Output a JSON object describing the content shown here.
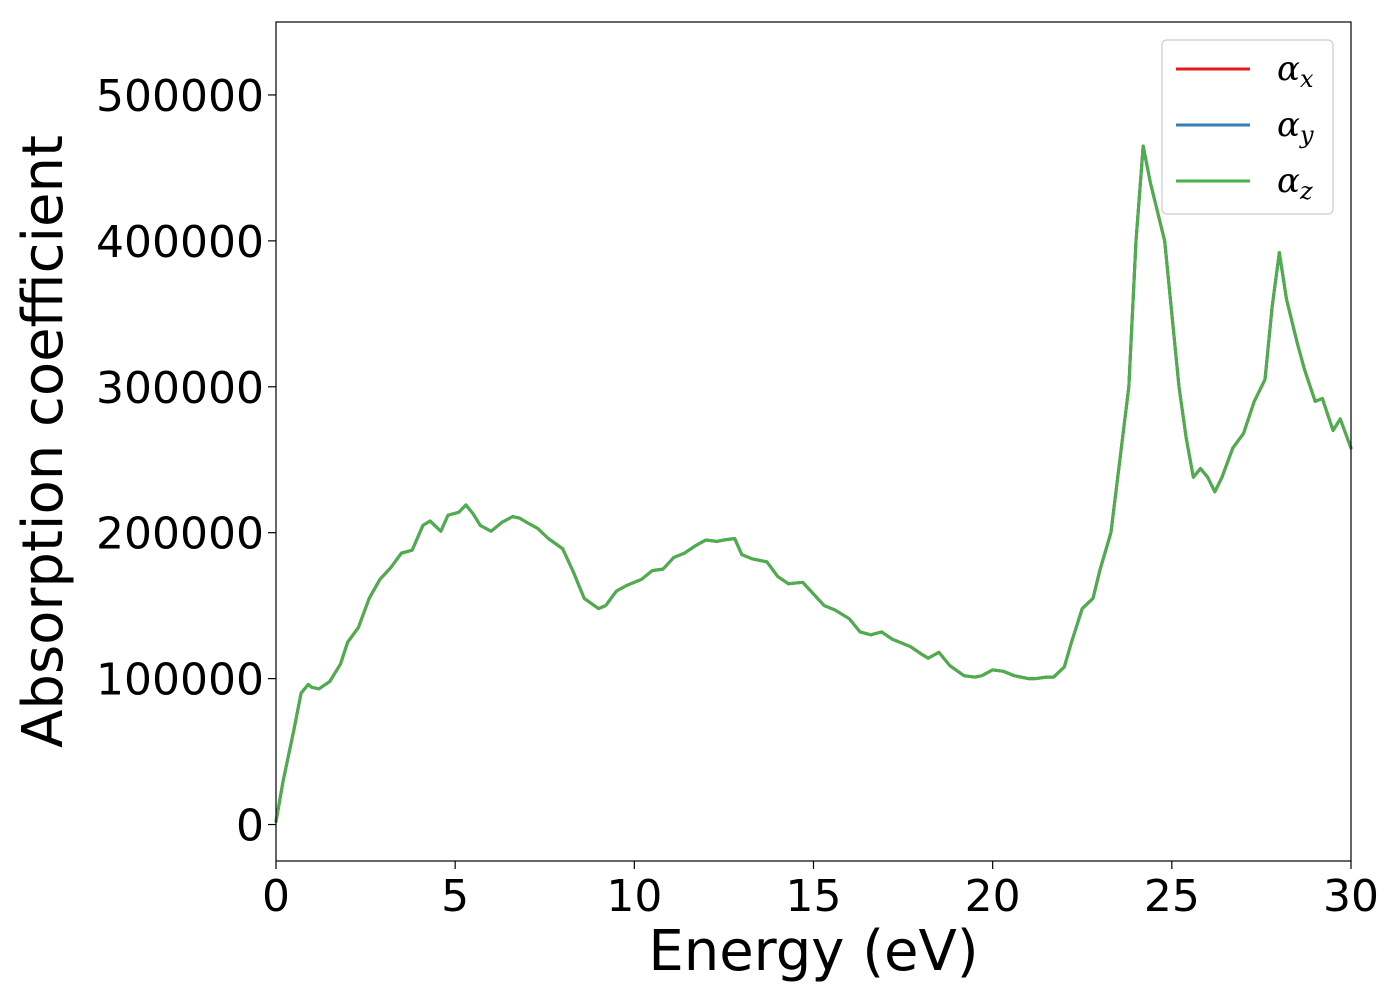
{
  "chart_data": {
    "type": "line",
    "xlabel": "Energy (eV)",
    "ylabel": "Absorption coefficient",
    "xlim": [
      0,
      30
    ],
    "ylim": [
      -25000,
      550000
    ],
    "xticks": [
      0,
      5,
      10,
      15,
      20,
      25,
      30
    ],
    "xtick_labels": [
      "0",
      "5",
      "10",
      "15",
      "20",
      "25",
      "30"
    ],
    "yticks": [
      0,
      100000,
      200000,
      300000,
      400000,
      500000
    ],
    "ytick_labels": [
      "0",
      "100000",
      "200000",
      "300000",
      "400000",
      "500000"
    ],
    "grid": false,
    "legend_position": "top-right",
    "legend": [
      {
        "symbol": "α",
        "sub": "x",
        "color": "#e41a1c"
      },
      {
        "symbol": "α",
        "sub": "y",
        "color": "#377eb8"
      },
      {
        "symbol": "α",
        "sub": "z",
        "color": "#4daf4a"
      }
    ],
    "x": [
      0,
      0.2,
      0.5,
      0.7,
      0.9,
      1.0,
      1.2,
      1.5,
      1.8,
      2.0,
      2.3,
      2.6,
      2.9,
      3.2,
      3.5,
      3.8,
      4.1,
      4.3,
      4.6,
      4.8,
      5.1,
      5.3,
      5.5,
      5.7,
      6.0,
      6.3,
      6.6,
      6.8,
      7.0,
      7.3,
      7.6,
      8.0,
      8.3,
      8.6,
      9.0,
      9.2,
      9.5,
      9.8,
      10.2,
      10.5,
      10.8,
      11.1,
      11.4,
      11.7,
      12.0,
      12.3,
      12.5,
      12.8,
      13.0,
      13.3,
      13.7,
      14.0,
      14.3,
      14.7,
      15.0,
      15.3,
      15.6,
      16.0,
      16.3,
      16.6,
      16.9,
      17.2,
      17.5,
      17.7,
      18.0,
      18.2,
      18.5,
      18.8,
      19.2,
      19.5,
      19.7,
      20.0,
      20.3,
      20.6,
      21.0,
      21.2,
      21.5,
      21.7,
      22.0,
      22.2,
      22.5,
      22.8,
      23.0,
      23.3,
      23.6,
      23.8,
      24.0,
      24.2,
      24.4,
      24.6,
      24.8,
      25.0,
      25.2,
      25.4,
      25.6,
      25.8,
      26.0,
      26.2,
      26.4,
      26.7,
      27.0,
      27.3,
      27.6,
      27.8,
      28.0,
      28.2,
      28.5,
      28.7,
      29.0,
      29.2,
      29.5,
      29.7,
      30.0
    ],
    "series": [
      {
        "color": "#e41a1c",
        "values": [
          2000,
          30000,
          65000,
          90000,
          96000,
          94000,
          93000,
          98000,
          110000,
          125000,
          135000,
          155000,
          168000,
          176000,
          186000,
          188000,
          205000,
          208000,
          201000,
          212000,
          214000,
          219000,
          213000,
          205000,
          201000,
          207000,
          211000,
          210000,
          207000,
          203000,
          196000,
          189000,
          173000,
          155000,
          148000,
          150000,
          160000,
          164000,
          168000,
          174000,
          175000,
          183000,
          186000,
          191000,
          195000,
          194000,
          195000,
          196000,
          185000,
          182000,
          180000,
          170000,
          165000,
          166000,
          158000,
          150000,
          147000,
          141000,
          132000,
          130000,
          132000,
          127000,
          124000,
          122000,
          117000,
          114000,
          118000,
          109000,
          102000,
          101000,
          102000,
          106000,
          105000,
          102000,
          100000,
          100000,
          101000,
          101000,
          108000,
          125000,
          148000,
          155000,
          175000,
          200000,
          260000,
          300000,
          400000,
          465000,
          440000,
          420000,
          400000,
          350000,
          300000,
          265000,
          238000,
          244000,
          238000,
          228000,
          238000,
          258000,
          268000,
          290000,
          305000,
          355000,
          392000,
          360000,
          330000,
          312000,
          290000,
          292000,
          270000,
          278000,
          258000
        ]
      },
      {
        "color": "#377eb8",
        "values": [
          2000,
          30000,
          65000,
          90000,
          96000,
          94000,
          93000,
          98000,
          110000,
          125000,
          135000,
          155000,
          168000,
          176000,
          186000,
          188000,
          205000,
          208000,
          201000,
          212000,
          214000,
          219000,
          213000,
          205000,
          201000,
          207000,
          211000,
          210000,
          207000,
          203000,
          196000,
          189000,
          173000,
          155000,
          148000,
          150000,
          160000,
          164000,
          168000,
          174000,
          175000,
          183000,
          186000,
          191000,
          195000,
          194000,
          195000,
          196000,
          185000,
          182000,
          180000,
          170000,
          165000,
          166000,
          158000,
          150000,
          147000,
          141000,
          132000,
          130000,
          132000,
          127000,
          124000,
          122000,
          117000,
          114000,
          118000,
          109000,
          102000,
          101000,
          102000,
          106000,
          105000,
          102000,
          100000,
          100000,
          101000,
          101000,
          108000,
          125000,
          148000,
          155000,
          175000,
          200000,
          260000,
          300000,
          400000,
          465000,
          440000,
          420000,
          400000,
          350000,
          300000,
          265000,
          238000,
          244000,
          238000,
          228000,
          238000,
          258000,
          268000,
          290000,
          305000,
          355000,
          392000,
          360000,
          330000,
          312000,
          290000,
          292000,
          270000,
          278000,
          258000
        ]
      },
      {
        "color": "#4daf4a",
        "values": [
          2000,
          30000,
          65000,
          90000,
          96000,
          94000,
          93000,
          98000,
          110000,
          125000,
          135000,
          155000,
          168000,
          176000,
          186000,
          188000,
          205000,
          208000,
          201000,
          212000,
          214000,
          219000,
          213000,
          205000,
          201000,
          207000,
          211000,
          210000,
          207000,
          203000,
          196000,
          189000,
          173000,
          155000,
          148000,
          150000,
          160000,
          164000,
          168000,
          174000,
          175000,
          183000,
          186000,
          191000,
          195000,
          194000,
          195000,
          196000,
          185000,
          182000,
          180000,
          170000,
          165000,
          166000,
          158000,
          150000,
          147000,
          141000,
          132000,
          130000,
          132000,
          127000,
          124000,
          122000,
          117000,
          114000,
          118000,
          109000,
          102000,
          101000,
          102000,
          106000,
          105000,
          102000,
          100000,
          100000,
          101000,
          101000,
          108000,
          125000,
          148000,
          155000,
          175000,
          200000,
          260000,
          300000,
          400000,
          465000,
          440000,
          420000,
          400000,
          350000,
          300000,
          265000,
          238000,
          244000,
          238000,
          228000,
          238000,
          258000,
          268000,
          290000,
          305000,
          355000,
          392000,
          360000,
          330000,
          312000,
          290000,
          292000,
          270000,
          278000,
          258000
        ]
      }
    ]
  }
}
